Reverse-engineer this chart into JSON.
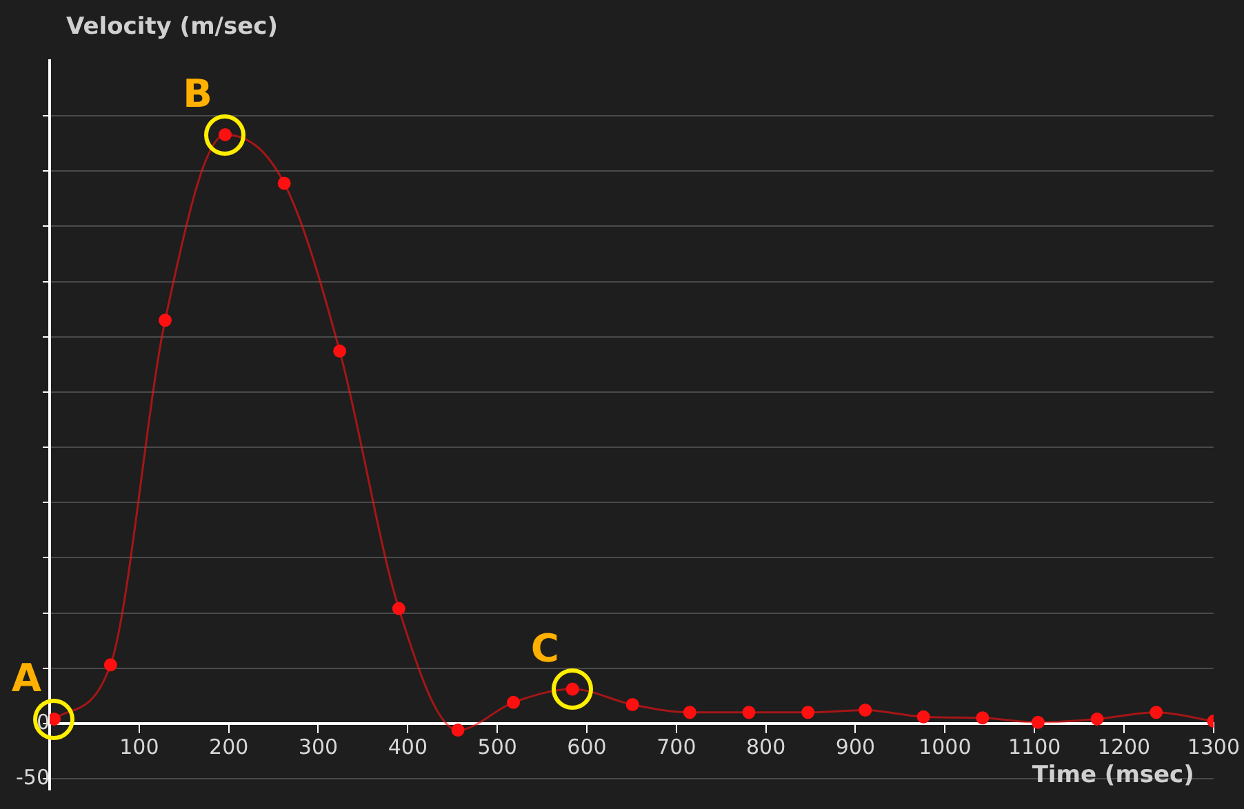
{
  "chart_data": {
    "type": "line",
    "xlabel": "Time (msec)",
    "ylabel": "Velocity (m/sec)",
    "x": [
      5,
      68,
      129,
      196,
      262,
      324,
      390,
      456,
      518,
      584,
      651,
      715,
      781,
      847,
      911,
      976,
      1042,
      1104,
      1170,
      1236,
      1300
    ],
    "series": [
      {
        "color": "#ff1010",
        "values": [
          4,
          53,
          365,
          533,
          489,
          337,
          104,
          -6,
          19,
          31,
          17,
          10,
          10,
          10,
          12,
          6,
          5,
          1,
          4,
          10,
          2
        ]
      }
    ],
    "xlim": [
      0,
      1300
    ],
    "xticks": [
      {
        "value": 0,
        "label": null
      },
      100,
      200,
      300,
      400,
      500,
      600,
      700,
      800,
      900,
      1000,
      1100,
      1200,
      1300
    ],
    "ylim": [
      -60,
      600
    ],
    "yticks": [
      {
        "value": -50,
        "label": "-50"
      },
      0,
      {
        "value": 50,
        "label": null
      },
      {
        "value": 100,
        "label": null
      },
      {
        "value": 150,
        "label": null
      },
      {
        "value": 200,
        "label": null
      },
      {
        "value": 250,
        "label": null
      },
      {
        "value": 300,
        "label": null
      },
      {
        "value": 350,
        "label": null
      },
      {
        "value": 400,
        "label": null
      },
      {
        "value": 450,
        "label": null
      },
      {
        "value": 500,
        "label": null
      },
      {
        "value": 550,
        "label": null
      }
    ],
    "grid": "y",
    "legend": false,
    "marker": "circle",
    "line_style": "solid",
    "annotations": [
      {
        "text": "A",
        "x": 5,
        "y": 4
      },
      {
        "text": "B",
        "x": 196,
        "y": 533
      },
      {
        "text": "C",
        "x": 584,
        "y": 31
      }
    ]
  }
}
